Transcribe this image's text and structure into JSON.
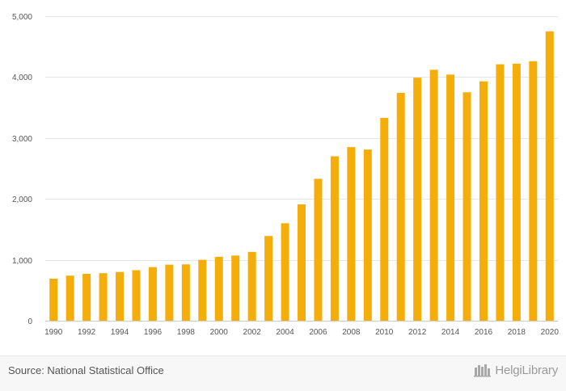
{
  "chart_data": {
    "type": "bar",
    "title": "",
    "xlabel": "",
    "ylabel": "",
    "ylim": [
      0,
      5000
    ],
    "y_ticks": [
      "0",
      "1,000",
      "2,000",
      "3,000",
      "4,000",
      "5,000"
    ],
    "y_tick_values": [
      0,
      1000,
      2000,
      3000,
      4000,
      5000
    ],
    "categories": [
      "1990",
      "1991",
      "1992",
      "1993",
      "1994",
      "1995",
      "1996",
      "1997",
      "1998",
      "1999",
      "2000",
      "2001",
      "2002",
      "2003",
      "2004",
      "2005",
      "2006",
      "2007",
      "2008",
      "2009",
      "2010",
      "2011",
      "2012",
      "2013",
      "2014",
      "2015",
      "2016",
      "2017",
      "2018",
      "2019",
      "2020"
    ],
    "x_tick_labels": [
      "1990",
      "1992",
      "1994",
      "1996",
      "1998",
      "2000",
      "2002",
      "2004",
      "2006",
      "2008",
      "2010",
      "2012",
      "2014",
      "2016",
      "2018",
      "2020"
    ],
    "values": [
      690,
      740,
      770,
      780,
      800,
      830,
      880,
      920,
      925,
      1000,
      1050,
      1070,
      1130,
      1390,
      1600,
      1910,
      2330,
      2700,
      2850,
      2810,
      3330,
      3740,
      3990,
      4120,
      4040,
      3750,
      3930,
      4210,
      4220,
      4260,
      4750
    ],
    "bar_color": "#f5ae09",
    "grid": true
  },
  "footer": {
    "source": "Source: National Statistical Office",
    "brand": "HelgiLibrary"
  }
}
